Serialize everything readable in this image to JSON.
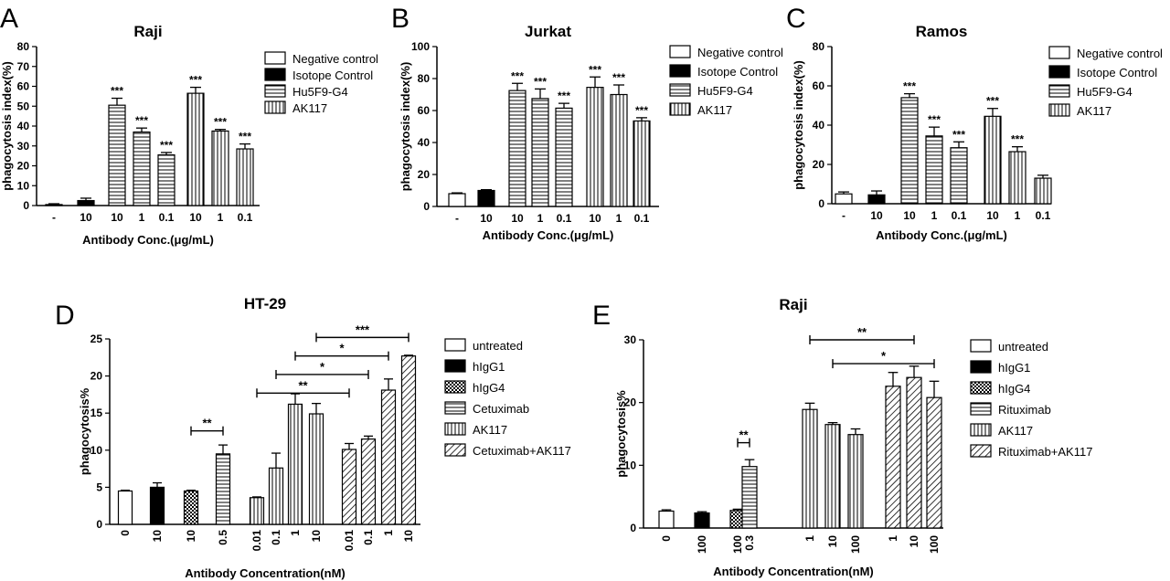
{
  "chart_data": [
    {
      "panel_letter": "A",
      "type": "bar",
      "title": "Raji",
      "xlabel": "Antibody Conc.(μg/mL)",
      "ylabel": "phagocytosis index(%)",
      "ylim": [
        0,
        80
      ],
      "yticks": [
        0,
        10,
        20,
        30,
        40,
        50,
        60,
        70,
        80
      ],
      "legend_position": "right",
      "legend": [
        "Negative control",
        "Isotope Control",
        "Hu5F9-G4",
        "AK117"
      ],
      "categories": [
        "-",
        "10",
        "10",
        "1",
        "0.1",
        "10",
        "1",
        "0.1"
      ],
      "values": [
        0.5,
        2.5,
        50.5,
        37.0,
        25.5,
        56.5,
        37.5,
        28.5
      ],
      "errors": [
        0.4,
        1.2,
        3.5,
        2.0,
        1.2,
        3.0,
        0.8,
        2.5
      ],
      "series_index": [
        0,
        1,
        2,
        2,
        2,
        3,
        3,
        3
      ],
      "significance": [
        "",
        "",
        "***",
        "***",
        "***",
        "***",
        "***",
        "***"
      ],
      "comparisons": []
    },
    {
      "panel_letter": "B",
      "type": "bar",
      "title": "Jurkat",
      "xlabel": "Antibody Conc.(μg/mL)",
      "ylabel": "phagocytosis index(%)",
      "ylim": [
        0,
        100
      ],
      "yticks": [
        0,
        20,
        40,
        60,
        80,
        100
      ],
      "legend_position": "right",
      "legend": [
        "Negative control",
        "Isotope Control",
        "Hu5F9-G4",
        "AK117"
      ],
      "categories": [
        "-",
        "10",
        "10",
        "1",
        "0.1",
        "10",
        "1",
        "0.1"
      ],
      "values": [
        8.0,
        10.0,
        72.5,
        67.5,
        61.5,
        74.5,
        70.0,
        53.5
      ],
      "errors": [
        0.5,
        0.5,
        4.5,
        6.0,
        3.0,
        6.5,
        6.0,
        2.0
      ],
      "series_index": [
        0,
        1,
        2,
        2,
        2,
        3,
        3,
        3
      ],
      "significance": [
        "",
        "",
        "***",
        "***",
        "***",
        "***",
        "***",
        "***"
      ],
      "comparisons": []
    },
    {
      "panel_letter": "C",
      "type": "bar",
      "title": "Ramos",
      "xlabel": "Antibody Conc.(μg/mL)",
      "ylabel": "phagocytosis index(%)",
      "ylim": [
        0,
        80
      ],
      "yticks": [
        0,
        20,
        40,
        60,
        80
      ],
      "legend_position": "right",
      "legend": [
        "Negative control",
        "Isotope Control",
        "Hu5F9-G4",
        "AK117"
      ],
      "categories": [
        "-",
        "10",
        "10",
        "1",
        "0.1",
        "10",
        "1",
        "0.1"
      ],
      "values": [
        5.0,
        4.5,
        54.0,
        34.5,
        28.5,
        44.5,
        26.5,
        13.0
      ],
      "errors": [
        1.0,
        2.0,
        2.0,
        4.5,
        3.0,
        4.0,
        2.5,
        1.5
      ],
      "series_index": [
        0,
        1,
        2,
        2,
        2,
        3,
        3,
        3
      ],
      "significance": [
        "",
        "",
        "***",
        "***",
        "***",
        "***",
        "***",
        ""
      ],
      "comparisons": []
    },
    {
      "panel_letter": "D",
      "type": "bar",
      "title": "HT-29",
      "xlabel": "Antibody Concentration(nM)",
      "ylabel": "phagocytosis%",
      "ylim": [
        0,
        25
      ],
      "yticks": [
        0,
        5,
        10,
        15,
        20,
        25
      ],
      "legend_position": "right",
      "legend": [
        "untreated",
        "hIgG1",
        "hIgG4",
        "Cetuximab",
        "AK117",
        "Cetuximab+AK117"
      ],
      "categories": [
        "0",
        "10",
        "10",
        "0.5",
        "0.01",
        "0.1",
        "1",
        "10",
        "0.01",
        "0.1",
        "1",
        "10"
      ],
      "values": [
        4.5,
        5.0,
        4.5,
        9.5,
        3.6,
        7.6,
        16.2,
        14.9,
        10.1,
        11.5,
        18.1,
        22.7
      ],
      "errors": [
        0.1,
        0.6,
        0.1,
        1.2,
        0.1,
        2.0,
        1.4,
        1.4,
        0.8,
        0.4,
        1.5,
        0.1
      ],
      "series_index": [
        0,
        1,
        2,
        3,
        4,
        4,
        4,
        4,
        5,
        5,
        5,
        5
      ],
      "significance": [
        "",
        "",
        "",
        "",
        "",
        "",
        "",
        "",
        "",
        "",
        "",
        ""
      ],
      "comparisons": [
        {
          "from": 2,
          "to": 3,
          "label": "**",
          "value": 12.6
        },
        {
          "from": 4,
          "to": 8,
          "label": "**",
          "value": 17.7
        },
        {
          "from": 5,
          "to": 9,
          "label": "*",
          "value": 20.2
        },
        {
          "from": 6,
          "to": 10,
          "label": "*",
          "value": 22.7
        },
        {
          "from": 7,
          "to": 11,
          "label": "***",
          "value": 25.2
        }
      ]
    },
    {
      "panel_letter": "E",
      "type": "bar",
      "title": "Raji",
      "xlabel": "Antibody Concentration(nM)",
      "ylabel": "phagocytosis%",
      "ylim": [
        0,
        30
      ],
      "yticks": [
        0,
        10,
        20,
        30
      ],
      "legend_position": "right",
      "legend": [
        "untreated",
        "hIgG1",
        "hIgG4",
        "Rituximab",
        "AK117",
        "Rituximab+AK117"
      ],
      "categories": [
        "0",
        "100",
        "100",
        "0.3",
        "1",
        "10",
        "100",
        "1",
        "10",
        "100"
      ],
      "values": [
        2.7,
        2.4,
        2.8,
        9.8,
        18.9,
        16.5,
        14.9,
        22.6,
        24.0,
        20.8
      ],
      "errors": [
        0.2,
        0.2,
        0.2,
        1.1,
        1.0,
        0.3,
        0.9,
        2.2,
        1.8,
        2.6
      ],
      "series_index": [
        0,
        1,
        2,
        3,
        4,
        4,
        4,
        5,
        5,
        5
      ],
      "significance": [
        "",
        "",
        "",
        "",
        "",
        "",
        "",
        "",
        "",
        ""
      ],
      "comparisons": [
        {
          "from": 2,
          "to": 3,
          "label": "**",
          "value": 13.6
        },
        {
          "from": 4,
          "to": 8,
          "label": "**",
          "value": 30.0
        },
        {
          "from": 5,
          "to": 9,
          "label": "*",
          "value": 26.2
        }
      ]
    }
  ]
}
